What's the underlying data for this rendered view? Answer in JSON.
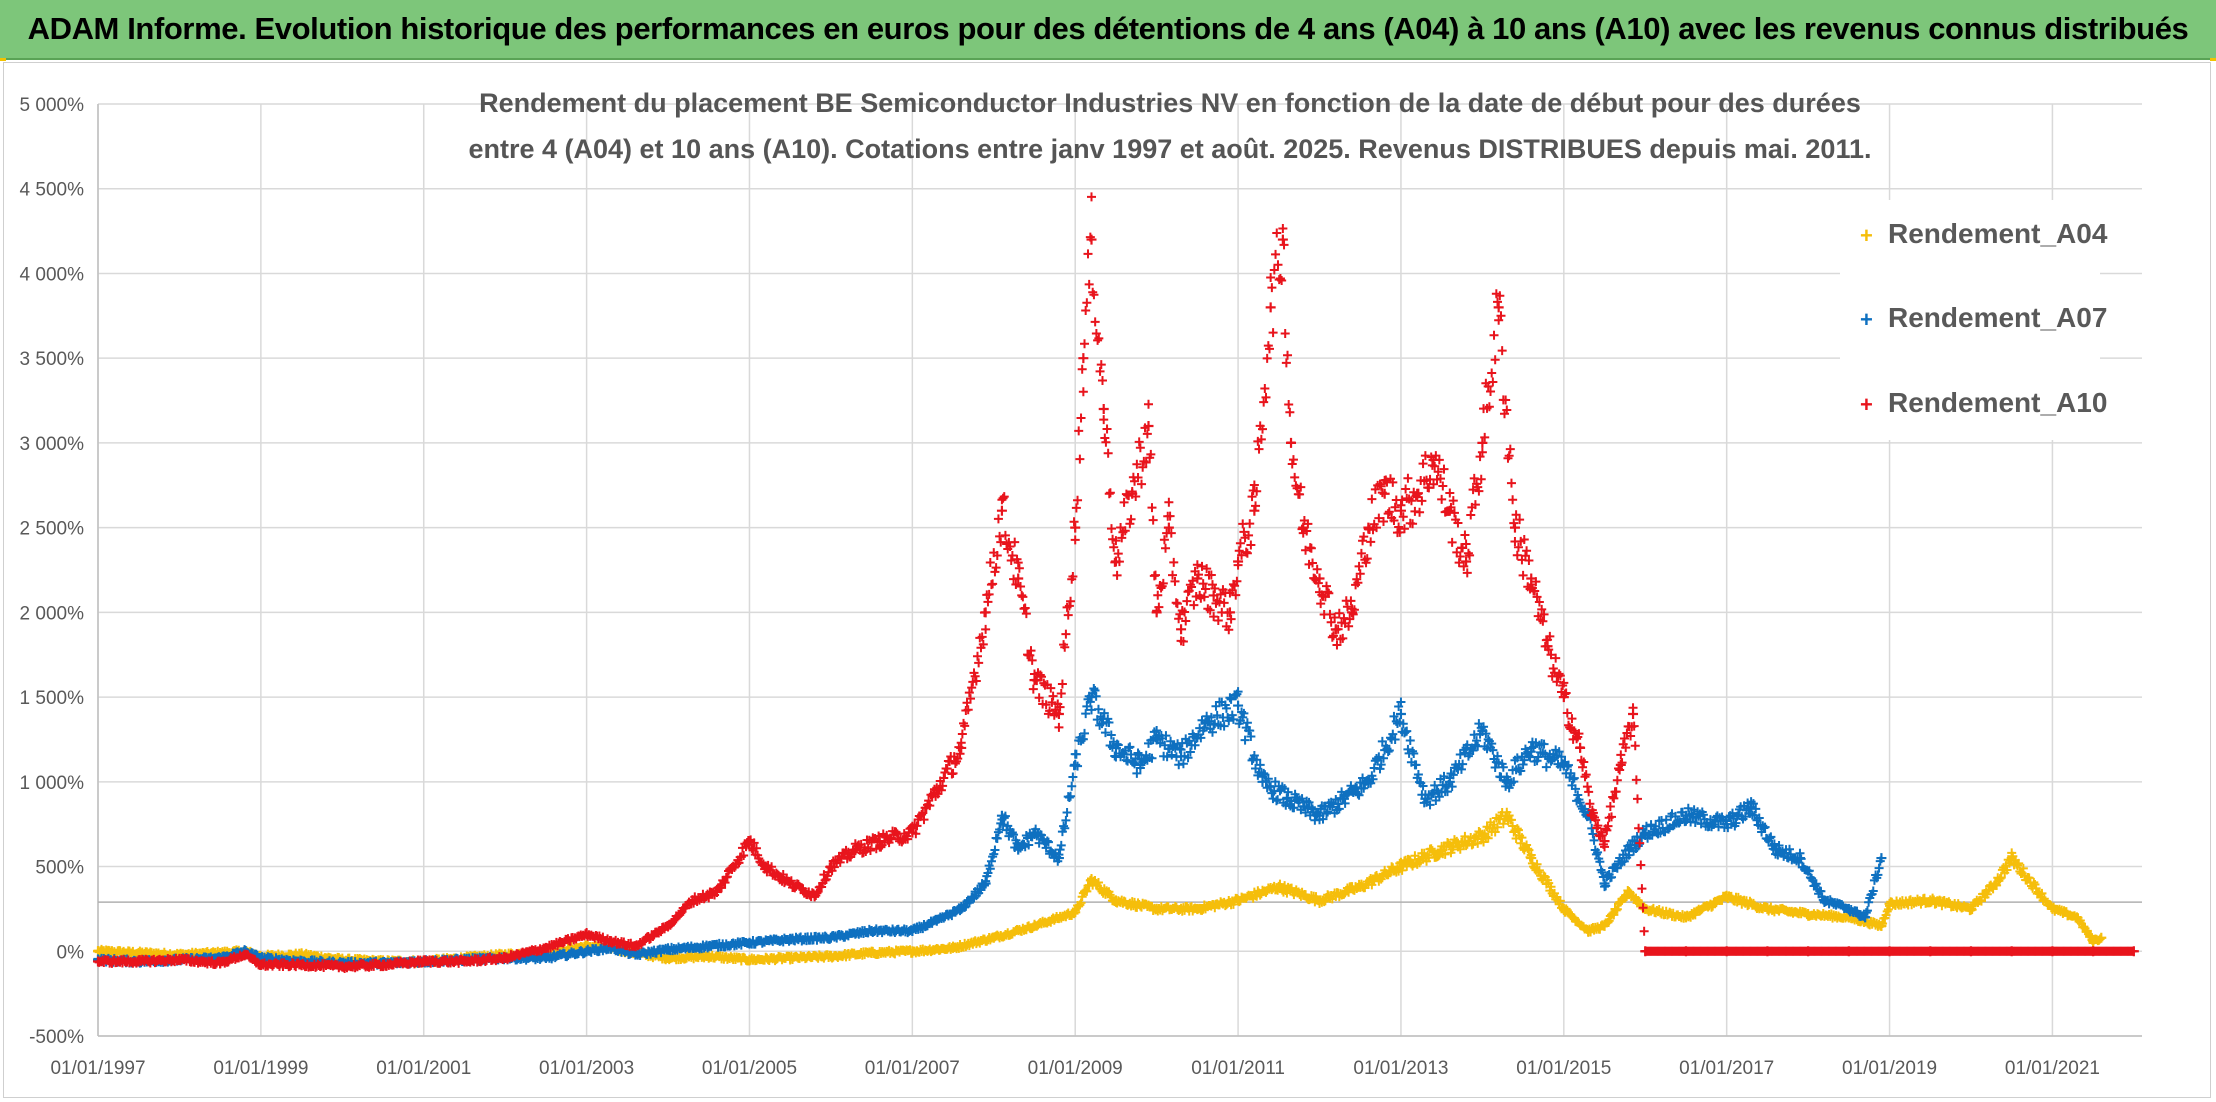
{
  "header": {
    "banner_title": "ADAM Informe. Evolution historique des performances en euros pour des détentions de 4 ans (A04) à 10 ans (A10) avec les revenus connus distribués"
  },
  "colors": {
    "banner_bg": "#7dc67a",
    "A04": "#f5be0b",
    "A07": "#0e70c0",
    "A10": "#e8141c"
  },
  "chart_data": {
    "type": "scatter",
    "title_line1": "Rendement du placement BE Semiconductor Industries NV en fonction de la date de début pour des durées",
    "title_line2": "entre 4 (A04) et 10 ans (A10). Cotations entre janv 1997 et août. 2025. Revenus DISTRIBUES depuis mai. 2011.",
    "xlabel": "",
    "ylabel": "",
    "x_ticks": [
      "01/01/1997",
      "01/01/1999",
      "01/01/2001",
      "01/01/2003",
      "01/01/2005",
      "01/01/2007",
      "01/01/2009",
      "01/01/2011",
      "01/01/2013",
      "01/01/2015",
      "01/01/2017",
      "01/01/2019",
      "01/01/2021"
    ],
    "y_ticks": [
      "-500%",
      "0%",
      "500%",
      "1 000%",
      "1 500%",
      "2 000%",
      "2 500%",
      "3 000%",
      "3 500%",
      "4 000%",
      "4 500%",
      "5 000%"
    ],
    "ylim": [
      -500,
      5000
    ],
    "xlim": [
      1997.0,
      2022.1
    ],
    "grid": true,
    "legend_position": "right",
    "marker": "+",
    "series": [
      {
        "name": "Rendement_A04",
        "x": [
          1997.0,
          1997.5,
          1998.0,
          1998.5,
          1998.8,
          1999.0,
          1999.5,
          2000.0,
          2000.5,
          2001.0,
          2001.5,
          2002.0,
          2002.5,
          2003.0,
          2003.3,
          2003.6,
          2004.0,
          2004.5,
          2005.0,
          2005.5,
          2006.0,
          2006.5,
          2007.0,
          2007.5,
          2008.0,
          2008.5,
          2009.0,
          2009.2,
          2009.5,
          2010.0,
          2010.5,
          2011.0,
          2011.5,
          2012.0,
          2012.5,
          2013.0,
          2013.5,
          2014.0,
          2014.3,
          2014.6,
          2015.0,
          2015.3,
          2015.5,
          2015.8,
          2016.0,
          2016.5,
          2017.0,
          2017.5,
          2018.0,
          2018.5,
          2018.9,
          2019.0,
          2019.5,
          2020.0,
          2020.3,
          2020.5,
          2021.0,
          2021.3,
          2021.5,
          2021.6
        ],
        "y": [
          0,
          -10,
          -20,
          -10,
          0,
          -30,
          -20,
          -50,
          -60,
          -60,
          -40,
          -20,
          -10,
          30,
          20,
          -10,
          -40,
          -30,
          -50,
          -40,
          -30,
          -10,
          0,
          20,
          80,
          150,
          230,
          420,
          300,
          250,
          250,
          300,
          380,
          300,
          380,
          500,
          600,
          680,
          800,
          550,
          250,
          120,
          150,
          350,
          250,
          200,
          320,
          250,
          220,
          200,
          150,
          280,
          300,
          250,
          400,
          550,
          250,
          200,
          60,
          80
        ]
      },
      {
        "name": "Rendement_A07",
        "x": [
          1997.0,
          1997.5,
          1998.0,
          1998.5,
          1998.8,
          1999.0,
          1999.5,
          2000.0,
          2000.5,
          2001.0,
          2001.5,
          2002.0,
          2002.5,
          2003.0,
          2003.3,
          2003.6,
          2004.0,
          2004.5,
          2005.0,
          2005.5,
          2006.0,
          2006.5,
          2007.0,
          2007.3,
          2007.6,
          2007.9,
          2008.1,
          2008.3,
          2008.5,
          2008.8,
          2009.0,
          2009.2,
          2009.5,
          2009.8,
          2010.0,
          2010.3,
          2010.6,
          2011.0,
          2011.3,
          2011.6,
          2012.0,
          2012.3,
          2012.6,
          2013.0,
          2013.3,
          2013.6,
          2014.0,
          2014.3,
          2014.6,
          2015.0,
          2015.3,
          2015.5,
          2015.8,
          2016.0,
          2016.5,
          2017.0,
          2017.3,
          2017.6,
          2017.9,
          2018.2,
          2018.5,
          2018.7,
          2018.9
        ],
        "y": [
          -50,
          -60,
          -50,
          -40,
          0,
          -40,
          -60,
          -70,
          -70,
          -60,
          -50,
          -40,
          -40,
          0,
          20,
          -20,
          10,
          30,
          50,
          70,
          80,
          120,
          120,
          180,
          250,
          400,
          800,
          600,
          700,
          550,
          1100,
          1500,
          1200,
          1100,
          1250,
          1150,
          1350,
          1450,
          1000,
          900,
          800,
          900,
          1000,
          1400,
          900,
          1000,
          1300,
          1000,
          1200,
          1100,
          800,
          400,
          600,
          700,
          800,
          750,
          850,
          600,
          550,
          300,
          250,
          200,
          550
        ]
      },
      {
        "name": "Rendement_A10",
        "x": [
          1997.0,
          1997.5,
          1998.0,
          1998.5,
          1998.8,
          1999.0,
          1999.5,
          2000.0,
          2000.5,
          2001.0,
          2001.5,
          2002.0,
          2002.5,
          2003.0,
          2003.3,
          2003.6,
          2004.0,
          2004.3,
          2004.6,
          2005.0,
          2005.2,
          2005.5,
          2005.8,
          2006.0,
          2006.3,
          2006.6,
          2007.0,
          2007.3,
          2007.6,
          2007.9,
          2008.1,
          2008.3,
          2008.5,
          2008.8,
          2009.0,
          2009.1,
          2009.2,
          2009.35,
          2009.5,
          2009.7,
          2009.9,
          2010.0,
          2010.15,
          2010.3,
          2010.5,
          2010.7,
          2010.9,
          2011.0,
          2011.2,
          2011.4,
          2011.55,
          2011.65,
          2011.8,
          2012.0,
          2012.2,
          2012.4,
          2012.6,
          2012.8,
          2013.0,
          2013.2,
          2013.4,
          2013.6,
          2013.8,
          2014.0,
          2014.2,
          2014.4,
          2014.6,
          2014.8,
          2015.0,
          2015.2,
          2015.35,
          2015.5,
          2015.7,
          2015.85,
          2016.0,
          2016.5,
          2017.0,
          2017.5,
          2018.0,
          2018.5,
          2019.0,
          2019.5,
          2020.0,
          2020.5,
          2021.0,
          2021.5,
          2022.0
        ],
        "y": [
          -60,
          -60,
          -50,
          -70,
          -20,
          -80,
          -80,
          -90,
          -80,
          -60,
          -60,
          -40,
          20,
          100,
          60,
          30,
          150,
          300,
          350,
          650,
          500,
          400,
          330,
          500,
          600,
          650,
          700,
          950,
          1200,
          2000,
          2600,
          2200,
          1600,
          1400,
          2500,
          3500,
          4200,
          3200,
          2300,
          2700,
          3100,
          2000,
          2500,
          1900,
          2200,
          2100,
          2000,
          2300,
          2600,
          3800,
          4200,
          3000,
          2500,
          2200,
          1900,
          2000,
          2500,
          2700,
          2600,
          2700,
          2900,
          2600,
          2300,
          3000,
          3800,
          2500,
          2200,
          1800,
          1500,
          1200,
          800,
          650,
          1100,
          1400,
          0,
          0,
          0,
          0,
          0,
          0,
          0,
          0,
          0,
          0,
          0,
          0,
          0
        ]
      }
    ]
  }
}
